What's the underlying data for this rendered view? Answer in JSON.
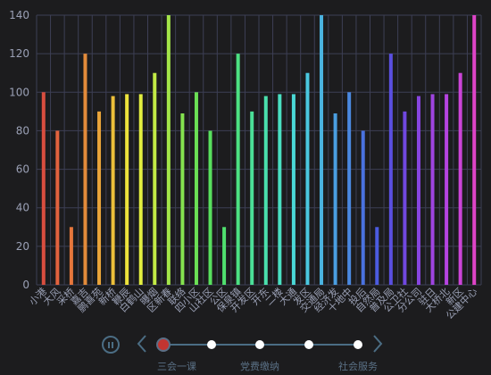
{
  "chart_data": {
    "type": "bar",
    "categories": [
      "小港",
      "大风",
      "采桥",
      "嘉吉",
      "鹏喜苑",
      "新桥",
      "鞭辰",
      "白鹤山",
      "曝烟",
      "区新春",
      "联络",
      "四小区",
      "山社区",
      "公区",
      "保泉镇",
      "开发区",
      "开东",
      "二楼",
      "大通",
      "发区",
      "交通局",
      "经济发",
      "十地中",
      "投后",
      "自然局",
      "普及局",
      "公卫社",
      "分公司",
      "驻日",
      "大桥北",
      "新区",
      "公建中心"
    ],
    "values": [
      100,
      80,
      30,
      120,
      90,
      98,
      99,
      99,
      110,
      140,
      89,
      100,
      80,
      30,
      120,
      90,
      98,
      99,
      99,
      110,
      140,
      89,
      100,
      80,
      30,
      120,
      90,
      98,
      99,
      99,
      110,
      140
    ],
    "colors": [
      "#d94e3f",
      "#e2623e",
      "#e6763c",
      "#e38b3a",
      "#e9a33a",
      "#ecbf3a",
      "#ede33c",
      "#e2ee40",
      "#c2ea45",
      "#a4e54a",
      "#84e24f",
      "#6be055",
      "#58e05e",
      "#4fe06e",
      "#4ce083",
      "#4be098",
      "#4ae0ad",
      "#4ae0c2",
      "#4ad8d6",
      "#4ac7e0",
      "#4ab3e0",
      "#4a9ee0",
      "#4a88e0",
      "#4a72e0",
      "#4b5be0",
      "#5a4fe0",
      "#7048e0",
      "#8745e0",
      "#9e44e0",
      "#b544e0",
      "#cc44d8",
      "#de44c6"
    ],
    "ylim": [
      0,
      140
    ],
    "yticks": [
      0,
      20,
      40,
      60,
      80,
      100,
      120,
      140
    ],
    "grid": true
  },
  "timeline": {
    "items": [
      "三会一课",
      "党费缴纳",
      "社会服务"
    ],
    "current_index": 0
  },
  "theme": {
    "background": "#1c1c1e",
    "grid_color": "#3d3f55",
    "axis_label_color": "#9aa0b5",
    "timeline_color": "#4b6d84",
    "current_node_color": "#c23531"
  }
}
